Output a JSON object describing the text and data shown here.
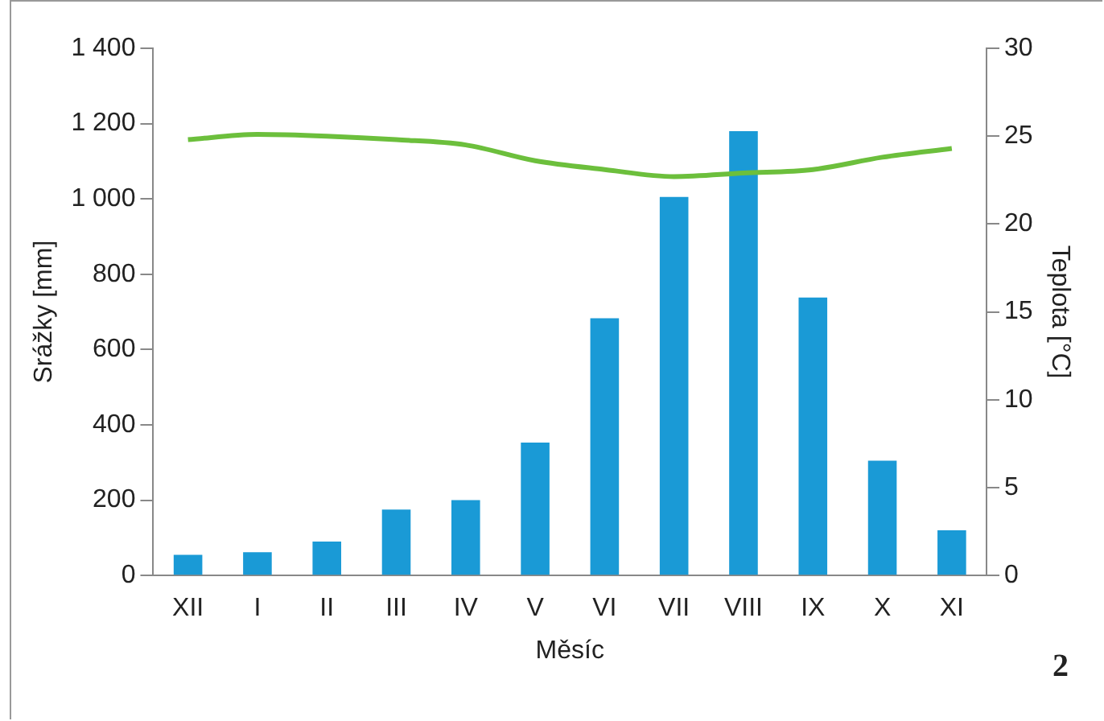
{
  "chart_data": {
    "type": "bar",
    "xlabel": "Měsíc",
    "ylabel": "Srážky [mm]",
    "y2label": "Teplota [°C]",
    "categories": [
      "XII",
      "I",
      "II",
      "III",
      "IV",
      "V",
      "VI",
      "VII",
      "VIII",
      "IX",
      "X",
      "XI"
    ],
    "series": [
      {
        "color": "#1a9ad6",
        "values": [
          55,
          62,
          90,
          175,
          200,
          353,
          683,
          1005,
          1180,
          738,
          305,
          120
        ]
      },
      {
        "type": "line",
        "axis": "y2",
        "color": "#6cbf3c",
        "marker": "none",
        "values": [
          24.8,
          25.1,
          25.0,
          24.8,
          24.5,
          23.6,
          23.1,
          22.7,
          22.9,
          23.1,
          23.8,
          24.3
        ]
      }
    ],
    "ylim": [
      0,
      1400
    ],
    "yticks": [
      0,
      {
        "value": 200,
        "label": "200"
      },
      400,
      600,
      800,
      {
        "value": 1000,
        "label": "1 000"
      },
      {
        "value": 1200,
        "label": "1 200"
      },
      {
        "value": 1400,
        "label": "1 400"
      }
    ],
    "y2lim": [
      0,
      30
    ],
    "y2ticks": [
      0,
      5,
      10,
      15,
      20,
      25,
      30
    ],
    "grid": false,
    "legend": false,
    "annotations": [
      "2"
    ]
  }
}
